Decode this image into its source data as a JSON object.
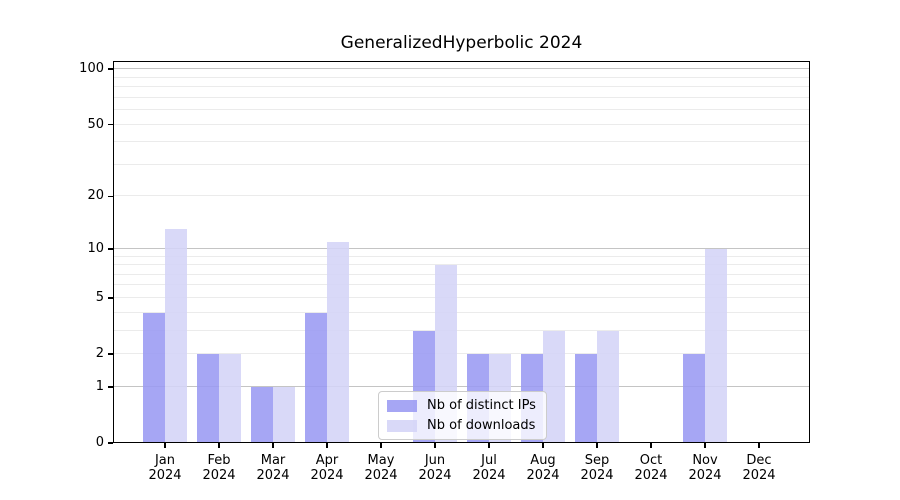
{
  "title": "GeneralizedHyperbolic 2024",
  "legend": {
    "items": [
      {
        "label": "Nb of distinct IPs"
      },
      {
        "label": "Nb of downloads"
      }
    ]
  },
  "chart_data": {
    "type": "bar",
    "title": "GeneralizedHyperbolic 2024",
    "categories": [
      "Jan 2024",
      "Feb 2024",
      "Mar 2024",
      "Apr 2024",
      "May 2024",
      "Jun 2024",
      "Jul 2024",
      "Aug 2024",
      "Sep 2024",
      "Oct 2024",
      "Nov 2024",
      "Dec 2024"
    ],
    "series": [
      {
        "name": "Nb of distinct IPs",
        "color": "#9a9af3",
        "values": [
          4,
          2,
          1,
          4,
          0,
          3,
          2,
          2,
          2,
          0,
          2,
          0
        ]
      },
      {
        "name": "Nb of downloads",
        "color": "#d4d4f7",
        "values": [
          13,
          2,
          1,
          11,
          0,
          8,
          2,
          3,
          3,
          0,
          10,
          0
        ]
      }
    ],
    "bar_opacity": 0.88,
    "yscale": "log1p",
    "ylim": [
      0,
      110
    ],
    "yticks": [
      0,
      1,
      2,
      5,
      10,
      20,
      50,
      100
    ],
    "gridlines_major": [
      1,
      10,
      100
    ],
    "gridlines_minor": [
      2,
      3,
      4,
      5,
      6,
      7,
      8,
      9,
      20,
      30,
      40,
      50,
      60,
      70,
      80,
      90
    ],
    "grid": true,
    "legend_position": "lower-center-inside",
    "xlabel": "",
    "ylabel": ""
  },
  "colors": {
    "grid_major": "#c4c4c4",
    "grid_minor": "#ebebeb",
    "axis": "#000000",
    "background": "#ffffff"
  }
}
